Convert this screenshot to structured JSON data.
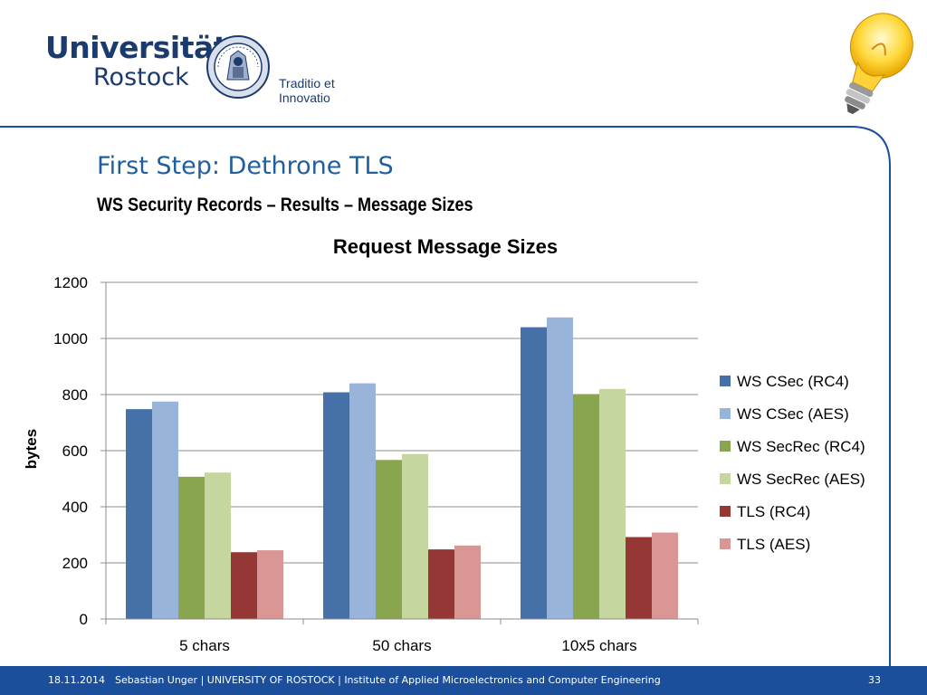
{
  "header": {
    "university_line1": "Universität",
    "university_line2": "Rostock",
    "motto": "Traditio et Innovatio"
  },
  "slide": {
    "title": "First Step: Dethrone TLS",
    "subtitle": "WS Security Records – Results – Message Sizes"
  },
  "chart_data": {
    "type": "bar",
    "title": "Request Message Sizes",
    "xlabel": "",
    "ylabel": "bytes",
    "ylim": [
      0,
      1200
    ],
    "yticks": [
      0,
      200,
      400,
      600,
      800,
      1000,
      1200
    ],
    "grid": true,
    "legend_position": "right",
    "categories": [
      "5 chars",
      "50 chars",
      "10x5 chars"
    ],
    "series": [
      {
        "name": "WS CSec (RC4)",
        "color": "#4571a8",
        "values": [
          748,
          808,
          1040
        ]
      },
      {
        "name": "WS CSec (AES)",
        "color": "#98b4da",
        "values": [
          775,
          840,
          1075
        ]
      },
      {
        "name": "WS SecRec (RC4)",
        "color": "#89a54e",
        "values": [
          507,
          567,
          800
        ]
      },
      {
        "name": "WS SecRec (AES)",
        "color": "#c5d79f",
        "values": [
          522,
          588,
          820
        ]
      },
      {
        "name": "TLS (RC4)",
        "color": "#953735",
        "values": [
          238,
          248,
          292
        ]
      },
      {
        "name": "TLS (AES)",
        "color": "#da9694",
        "values": [
          245,
          262,
          308
        ]
      }
    ]
  },
  "footer": {
    "date": "18.11.2014",
    "info": "Sebastian Unger | UNIVERSITY OF ROSTOCK | Institute of Applied Microelectronics and Computer Engineering",
    "page": "33"
  },
  "colors": {
    "brand_blue": "#1b4f9c",
    "title_blue": "#1f5f9f",
    "text_navy": "#1b3a6e"
  }
}
